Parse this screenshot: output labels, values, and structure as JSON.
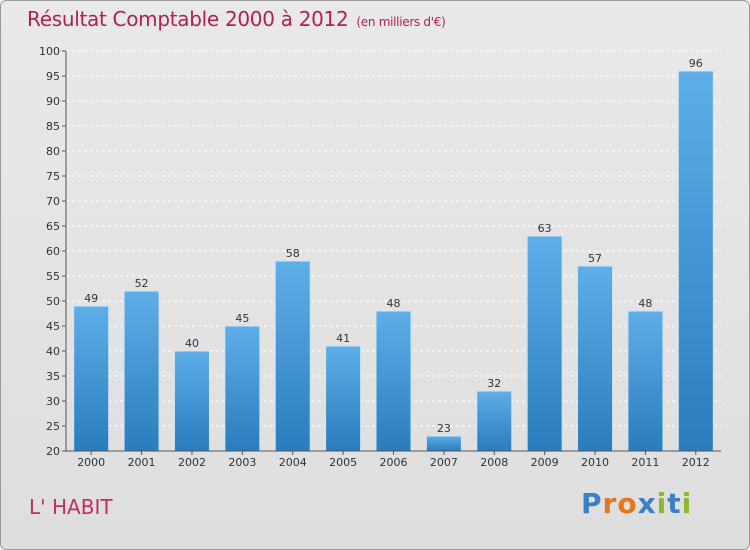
{
  "header": {
    "title": "Résultat Comptable 2000 à 2012",
    "subtitle": "(en milliers d'€)"
  },
  "footer": {
    "commune": "L' HABIT",
    "logo_text": "Proxiti"
  },
  "colors": {
    "bar_top": "#5eaee8",
    "bar_bottom": "#2a7cbc",
    "title": "#b0224b",
    "logo": [
      "#3b7fc4",
      "#e8741c",
      "#e8741c",
      "#3b7fc4",
      "#8ab82e",
      "#3b7fc4",
      "#8ab82e"
    ]
  },
  "chart_data": {
    "type": "bar",
    "title": "Résultat Comptable 2000 à 2012",
    "subtitle": "(en milliers d'€)",
    "xlabel": "",
    "ylabel": "",
    "categories": [
      "2000",
      "2001",
      "2002",
      "2003",
      "2004",
      "2005",
      "2006",
      "2007",
      "2008",
      "2009",
      "2010",
      "2011",
      "2012"
    ],
    "values": [
      49,
      52,
      40,
      45,
      58,
      41,
      48,
      23,
      32,
      63,
      57,
      48,
      96
    ],
    "ylim": [
      20,
      100
    ],
    "yticks": [
      20,
      25,
      30,
      35,
      40,
      45,
      50,
      55,
      60,
      65,
      70,
      75,
      80,
      85,
      90,
      95,
      100
    ],
    "grid": true,
    "data_labels": true
  }
}
